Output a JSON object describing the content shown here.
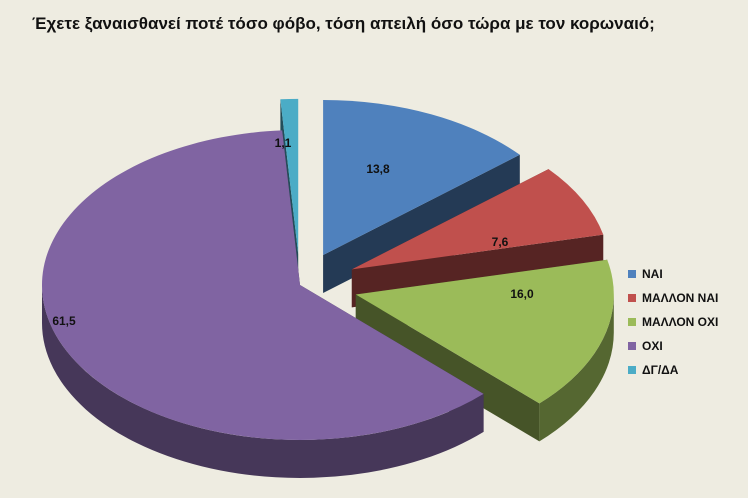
{
  "chart_data": {
    "type": "pie",
    "title": "Έχετε ξαναισθανεί ποτέ τόσο φόβο, τόση απειλή όσο τώρα με τον κορωναιό;",
    "categories": [
      "ΝΑΙ",
      "ΜΑΛΛΟΝ ΝΑΙ",
      "ΜΑΛΛΟΝ ΟΧΙ",
      "ΟΧΙ",
      "ΔΓ/ΔΑ"
    ],
    "values": [
      13.8,
      7.6,
      16.0,
      61.5,
      1.1
    ],
    "data_labels": [
      "13,8",
      "7,6",
      "16,0",
      "61,5",
      "1,1"
    ],
    "colors": [
      "#4f81bd",
      "#c0504d",
      "#9bbb59",
      "#8064a2",
      "#4bacc6"
    ],
    "style": "3d-exploded",
    "legend_position": "right"
  }
}
